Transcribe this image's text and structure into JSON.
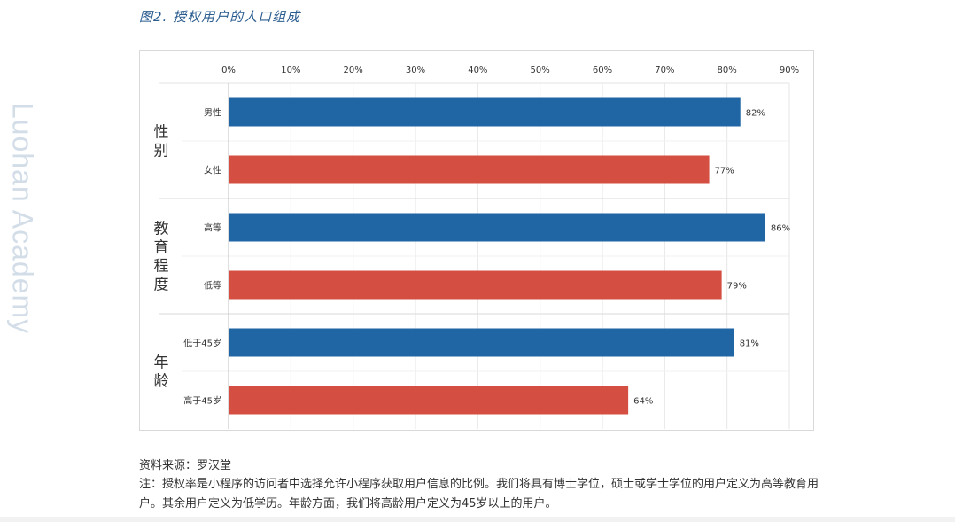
{
  "figure": {
    "title": "图2.  授权用户的人口组成",
    "watermark": "Luohan Academy",
    "source": "资料来源：罗汉堂",
    "note": "注：授权率是小程序的访问者中选择允许小程序获取用户信息的比例。我们将具有博士学位，硕士或学士学位的用户定义为高等教育用户。其余用户定义为低学历。年龄方面，我们将高龄用户定义为45岁以上的用户。"
  },
  "colors": {
    "blue": "#2166a4",
    "red": "#d44f42",
    "grid": "#e6e6e6",
    "axis": "#bfbfbf"
  },
  "chart_data": {
    "type": "bar",
    "orientation": "horizontal",
    "title": "",
    "xlabel": "",
    "ylabel": "",
    "xlim": [
      0,
      90
    ],
    "ticks": [
      "0%",
      "10%",
      "20%",
      "30%",
      "40%",
      "50%",
      "60%",
      "70%",
      "80%",
      "90%"
    ],
    "tick_values": [
      0,
      10,
      20,
      30,
      40,
      50,
      60,
      70,
      80,
      90
    ],
    "grid": true,
    "axis_position": "top",
    "groups": [
      {
        "label": "性\n别",
        "categories": [
          {
            "label": "男性",
            "value": 82,
            "value_label": "82%",
            "color": "#2166a4"
          },
          {
            "label": "女性",
            "value": 77,
            "value_label": "77%",
            "color": "#d44f42"
          }
        ]
      },
      {
        "label": "教\n育\n程\n度",
        "categories": [
          {
            "label": "高等",
            "value": 86,
            "value_label": "86%",
            "color": "#2166a4"
          },
          {
            "label": "低等",
            "value": 79,
            "value_label": "79%",
            "color": "#d44f42"
          }
        ]
      },
      {
        "label": "年\n龄",
        "categories": [
          {
            "label": "低于45岁",
            "value": 81,
            "value_label": "81%",
            "color": "#2166a4"
          },
          {
            "label": "高于45岁",
            "value": 64,
            "value_label": "64%",
            "color": "#d44f42"
          }
        ]
      }
    ]
  }
}
